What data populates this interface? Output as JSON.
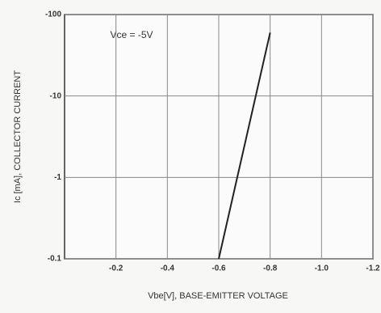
{
  "chart_data": {
    "type": "line",
    "x_label": "Vbe[V], BASE-EMITTER VOLTAGE",
    "y_label": "Ic [mA], COLLECTOR CURRENT",
    "annotation": "Vce = -5V",
    "x": [
      -0.6,
      -0.8
    ],
    "series": [
      {
        "values": [
          -0.1,
          -60
        ],
        "color": "#222222"
      }
    ],
    "xlim": [
      0,
      -1.2
    ],
    "xticks": [
      -0.2,
      -0.4,
      -0.6,
      -0.8,
      {
        "value": -1,
        "label": "-1.0"
      },
      -1.2
    ],
    "ylim": [
      -0.1,
      -100
    ],
    "yticks": [
      -0.1,
      -1,
      -10,
      -100
    ],
    "log_y": true,
    "grid": true
  }
}
